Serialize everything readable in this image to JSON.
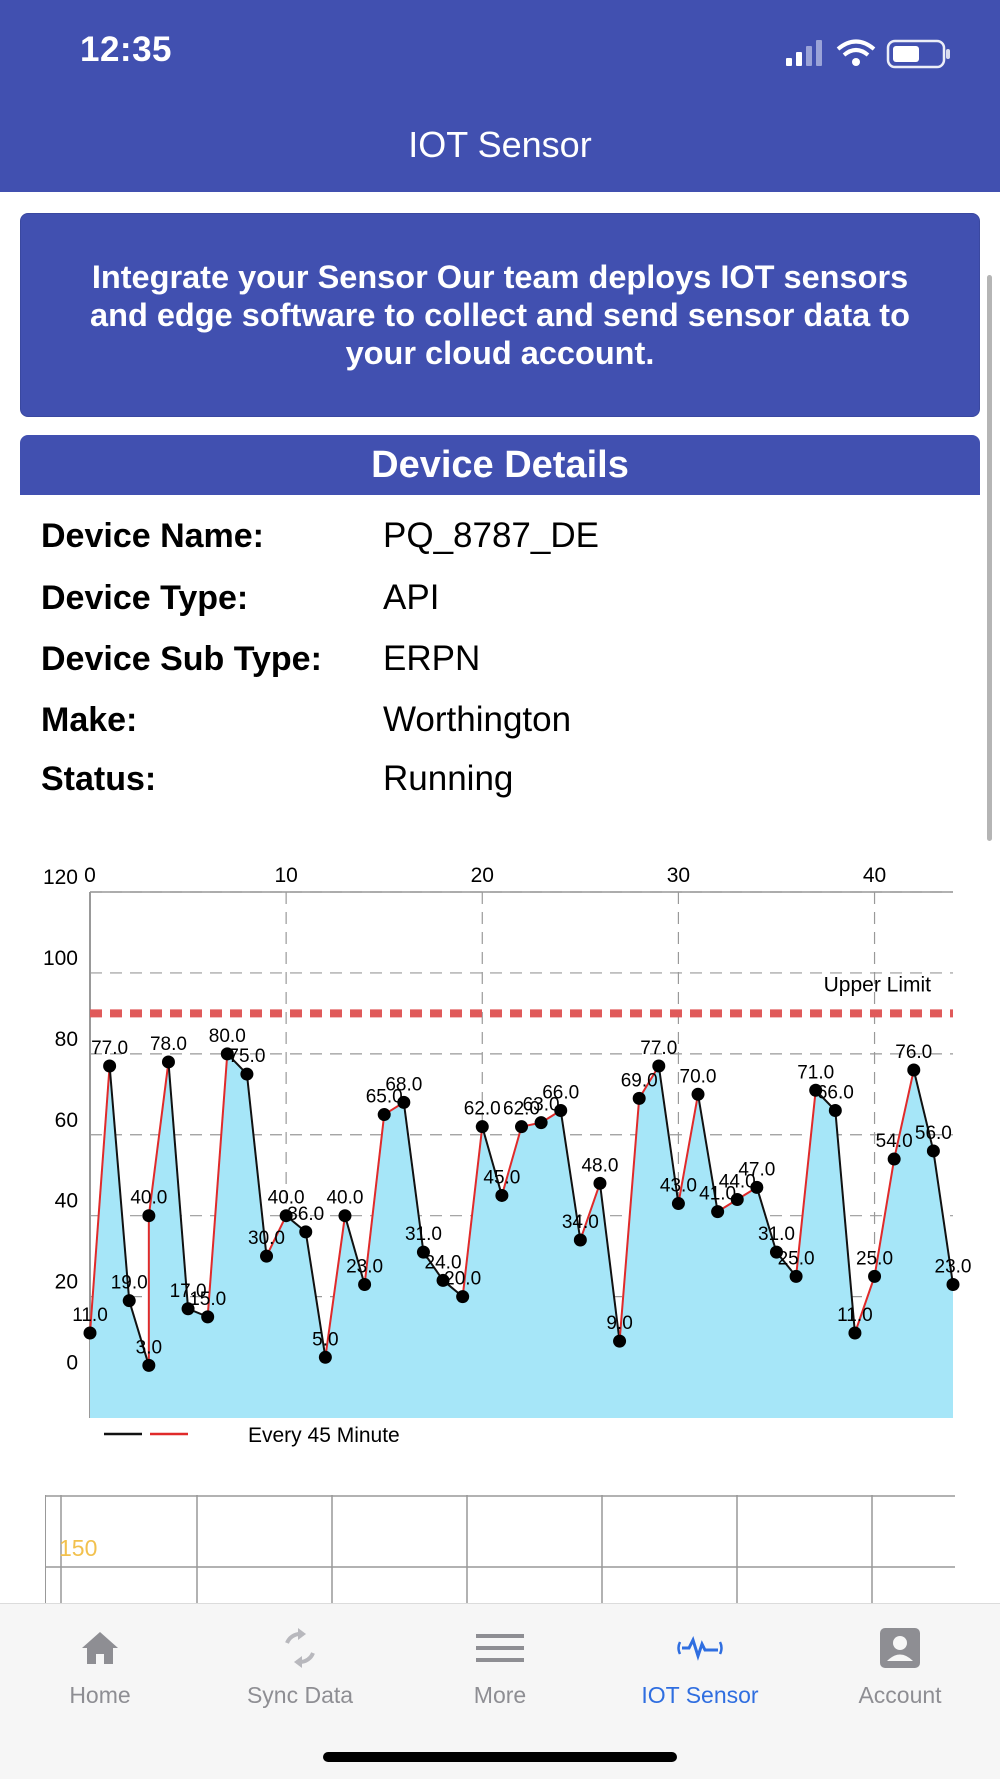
{
  "status_bar": {
    "time": "12:35"
  },
  "header": {
    "title": "IOT Sensor"
  },
  "intro": {
    "text": "Integrate your Sensor Our team deploys IOT sensors and edge software to collect and send sensor data to your cloud account."
  },
  "device_details": {
    "title": "Device Details",
    "rows": [
      {
        "label": "Device Name:",
        "value": "PQ_8787_DE"
      },
      {
        "label": "Device Type:",
        "value": "API"
      },
      {
        "label": "Device Sub Type:",
        "value": "ERPN"
      },
      {
        "label": "Make:",
        "value": "Worthington"
      },
      {
        "label": "Status:",
        "value": "Running"
      }
    ]
  },
  "chart_data": {
    "type": "area",
    "x_ticks": [
      "0",
      "10",
      "20",
      "30",
      "40"
    ],
    "y_ticks": [
      "0",
      "20",
      "40",
      "60",
      "80",
      "100",
      "120"
    ],
    "xlim": [
      0,
      44
    ],
    "ylim": [
      -10,
      120
    ],
    "grid": true,
    "limit_line": {
      "label": "Upper Limit",
      "value": 90,
      "color": "#e05a5a"
    },
    "fill_color": "#a6e6f8",
    "up_color": "#e02a2a",
    "down_color": "#111111",
    "legend": {
      "label": "Every 45 Minute",
      "placement": "bottom-left"
    },
    "x": [
      0,
      1,
      2,
      3,
      3,
      4,
      5,
      6,
      7,
      8,
      9,
      10,
      11,
      12,
      13,
      14,
      15,
      16,
      17,
      18,
      19,
      20,
      21,
      22,
      23,
      24,
      25,
      26,
      27,
      28,
      29,
      30,
      31,
      32,
      33,
      34,
      35,
      36,
      37,
      38,
      39,
      40,
      41,
      42,
      43,
      44
    ],
    "values": [
      11,
      77,
      19,
      3,
      40,
      78,
      17,
      15,
      80,
      75,
      30,
      40,
      36,
      5,
      40,
      23,
      65,
      68,
      31,
      24,
      20,
      62,
      45,
      62,
      63,
      66,
      34,
      48,
      9,
      69,
      77,
      43,
      70,
      41,
      44,
      47,
      31,
      25,
      71,
      66,
      11,
      25,
      54,
      76,
      56,
      23
    ],
    "data_labels": [
      "11.0",
      "77.0",
      "19.0",
      "3.0",
      "40.0",
      "78.0",
      "17.0",
      "15.0",
      "80.0",
      "75.0",
      "30.0",
      "40.0",
      "36.0",
      "5.0",
      "40.0",
      "23.0",
      "65.0",
      "68.0",
      "31.0",
      "24.0",
      "20.0",
      "62.0",
      "45.0",
      "62.0",
      "63.0",
      "66.0",
      "34.0",
      "48.0",
      "9.0",
      "69.0",
      "77.0",
      "43.0",
      "70.0",
      "41.0",
      "44.0",
      "47.0",
      "31.0",
      "25.0",
      "71.0",
      "66.0",
      "11.0",
      "25.0",
      "54.0",
      "76.0",
      "56.0",
      "23.0"
    ]
  },
  "second_chart": {
    "first_label": "150"
  },
  "tabs": [
    {
      "label": "Home",
      "icon": "home-icon",
      "active": false
    },
    {
      "label": "Sync Data",
      "icon": "sync-icon",
      "active": false
    },
    {
      "label": "More",
      "icon": "menu-icon",
      "active": false
    },
    {
      "label": "IOT Sensor",
      "icon": "sensor-icon",
      "active": true
    },
    {
      "label": "Account",
      "icon": "account-icon",
      "active": false
    }
  ],
  "colors": {
    "primary": "#4150b0",
    "active_tab": "#2f6ee0",
    "inactive_tab": "#8e8e93"
  }
}
